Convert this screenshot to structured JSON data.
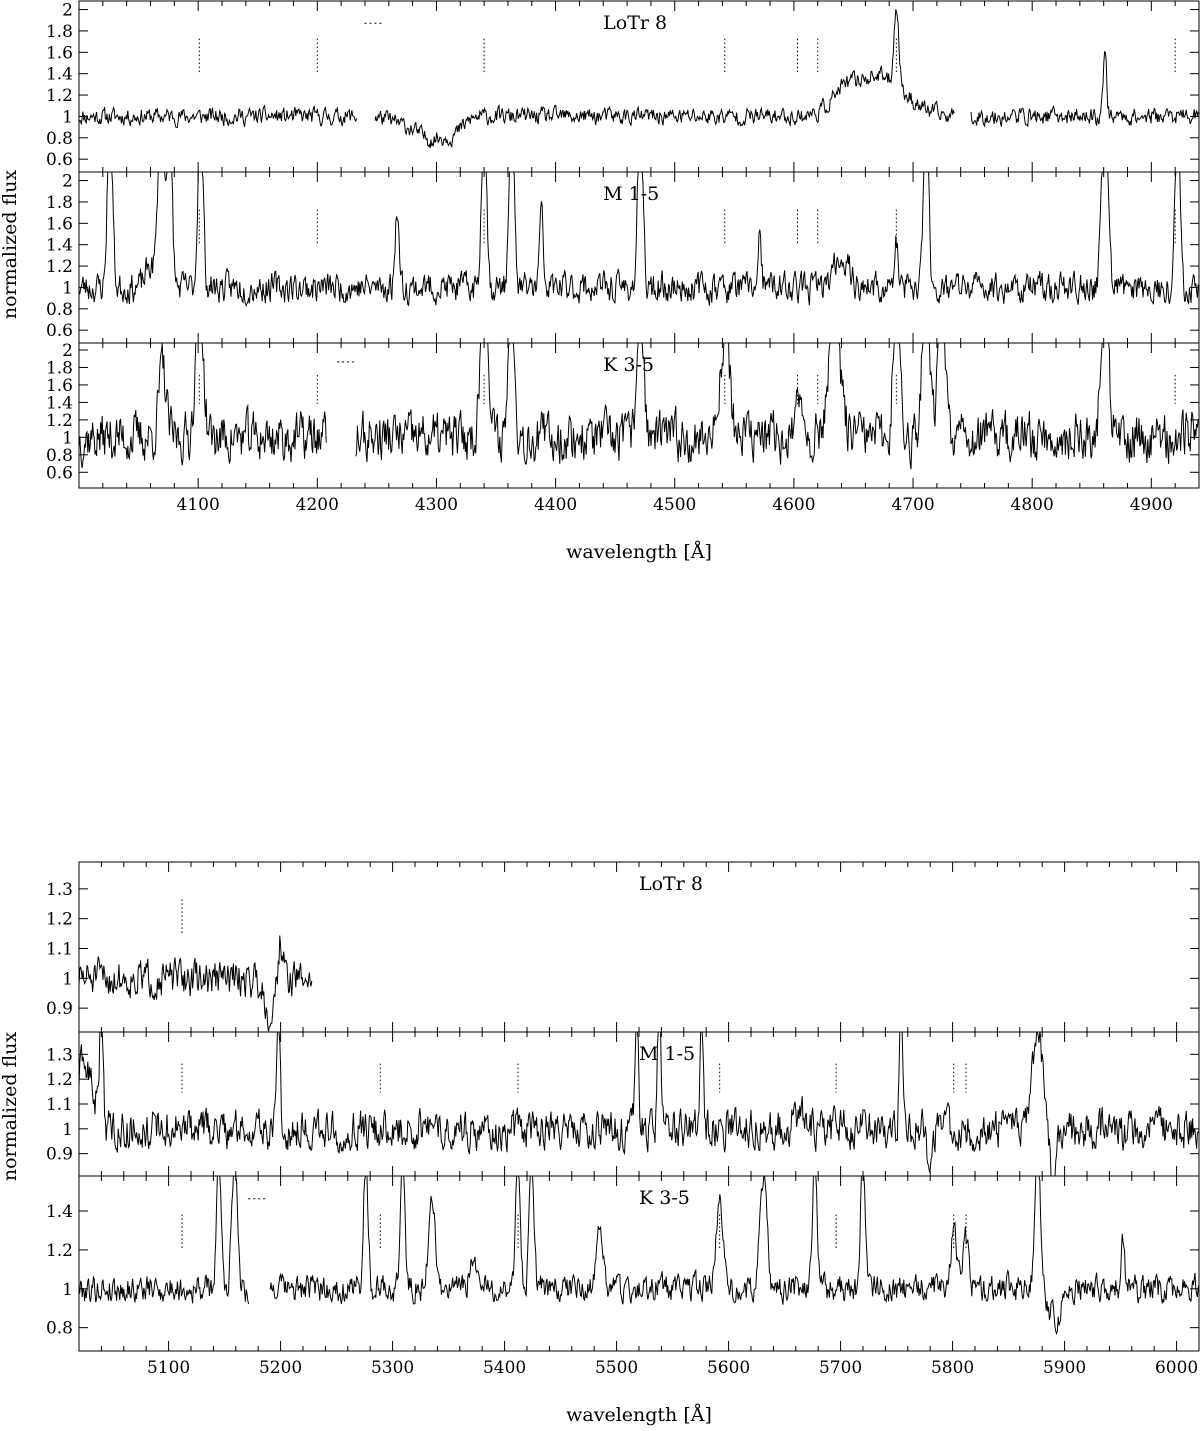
{
  "chart_data": [
    {
      "type": "line",
      "xlabel": "wavelength [Å]",
      "ylabel": "normalized flux",
      "xlim": [
        4000,
        4940
      ],
      "xticks": [
        4100,
        4200,
        4300,
        4400,
        4500,
        4600,
        4700,
        4800,
        4900
      ],
      "panels": [
        {
          "label": "LoTr 8",
          "ylim": [
            0.48,
            2.08
          ],
          "yticks": [
            0.6,
            0.8,
            1,
            1.2,
            1.4,
            1.6,
            1.8,
            2
          ],
          "line_marks": [
            4101,
            4200,
            4340,
            4542,
            4603,
            4620,
            4686,
            4920
          ],
          "short_marks": [
            4248
          ],
          "noise": 0.045,
          "seed": 11,
          "gaps": [
            [
              4233,
              4248
            ],
            [
              4735,
              4748
            ]
          ],
          "features": [
            {
              "center": 4270,
              "width": 10,
              "amp": -0.05
            },
            {
              "center": 4295,
              "width": 12,
              "amp": -0.2
            },
            {
              "center": 4315,
              "width": 8,
              "amp": -0.12
            },
            {
              "center": 4670,
              "width": 22,
              "amp": 0.38
            },
            {
              "center": 4686,
              "width": 2,
              "amp": 0.75
            },
            {
              "center": 4861,
              "width": 1.5,
              "amp": 0.6
            },
            {
              "center": 4641,
              "width": 10,
              "amp": 0.12
            }
          ]
        },
        {
          "label": "M 1-5",
          "ylim": [
            0.48,
            2.08
          ],
          "yticks": [
            0.6,
            0.8,
            1,
            1.2,
            1.4,
            1.6,
            1.8,
            2
          ],
          "line_marks": [
            4101,
            4200,
            4340,
            4542,
            4603,
            4620,
            4686,
            4920
          ],
          "short_marks": [],
          "noise": 0.08,
          "seed": 23,
          "gaps": [],
          "features": [
            {
              "center": 4026,
              "width": 2,
              "amp": 1.8
            },
            {
              "center": 4069,
              "width": 2.5,
              "amp": 1.8
            },
            {
              "center": 4076,
              "width": 2,
              "amp": 1.8
            },
            {
              "center": 4102,
              "width": 2,
              "amp": 1.8
            },
            {
              "center": 4267,
              "width": 1.5,
              "amp": 0.8
            },
            {
              "center": 4340,
              "width": 2,
              "amp": 1.8
            },
            {
              "center": 4363,
              "width": 2,
              "amp": 1.8
            },
            {
              "center": 4388,
              "width": 1.5,
              "amp": 0.7
            },
            {
              "center": 4471,
              "width": 2,
              "amp": 1.8
            },
            {
              "center": 4571,
              "width": 1.5,
              "amp": 0.45
            },
            {
              "center": 4640,
              "width": 6,
              "amp": 0.3
            },
            {
              "center": 4686,
              "width": 1.5,
              "amp": 0.4
            },
            {
              "center": 4711,
              "width": 2,
              "amp": 1.8
            },
            {
              "center": 4861,
              "width": 2.5,
              "amp": 1.8
            },
            {
              "center": 4922,
              "width": 2,
              "amp": 1.8
            },
            {
              "center": 4060,
              "width": 4,
              "amp": 0.2
            }
          ]
        },
        {
          "label": "K 3-5",
          "ylim": [
            0.42,
            2.08
          ],
          "yticks": [
            0.6,
            0.8,
            1,
            1.2,
            1.4,
            1.6,
            1.8,
            2
          ],
          "line_marks": [
            4101,
            4200,
            4340,
            4542,
            4603,
            4620,
            4686,
            4920
          ],
          "short_marks": [
            4225
          ],
          "noise": 0.16,
          "seed": 37,
          "gaps": [
            [
              4208,
              4232
            ]
          ],
          "features": [
            {
              "center": 4070,
              "width": 3,
              "amp": 0.8
            },
            {
              "center": 4101,
              "width": 3,
              "amp": 1.8
            },
            {
              "center": 4340,
              "width": 3,
              "amp": 1.8
            },
            {
              "center": 4363,
              "width": 2.5,
              "amp": 1.8
            },
            {
              "center": 4471,
              "width": 2.5,
              "amp": 1.8
            },
            {
              "center": 4542,
              "width": 4,
              "amp": 1.2
            },
            {
              "center": 4606,
              "width": 3,
              "amp": 0.45
            },
            {
              "center": 4634,
              "width": 5,
              "amp": 1.3
            },
            {
              "center": 4686,
              "width": 2.5,
              "amp": 1.8
            },
            {
              "center": 4711,
              "width": 3,
              "amp": 1.8
            },
            {
              "center": 4724,
              "width": 3,
              "amp": 1.8
            },
            {
              "center": 4740,
              "width": 3,
              "amp": 0.35
            },
            {
              "center": 4861,
              "width": 3,
              "amp": 1.8
            },
            {
              "center": 4938,
              "width": 2,
              "amp": 0.3
            }
          ]
        }
      ]
    },
    {
      "type": "line",
      "xlabel": "wavelength [Å]",
      "ylabel": "normalized flux",
      "xlim": [
        5020,
        6020
      ],
      "xticks": [
        5100,
        5200,
        5300,
        5400,
        5500,
        5600,
        5700,
        5800,
        5900,
        6000
      ],
      "panels": [
        {
          "label": "LoTr 8",
          "ylim": [
            0.82,
            1.39
          ],
          "yticks": [
            0.9,
            1,
            1.1,
            1.2,
            1.3
          ],
          "line_marks": [
            5112
          ],
          "short_marks": [],
          "noise": 0.035,
          "seed": 51,
          "data_range": [
            5020,
            5228
          ],
          "gaps": [],
          "features": [
            {
              "center": 5190,
              "width": 4,
              "amp": -0.12
            },
            {
              "center": 5200,
              "width": 2,
              "amp": 0.13
            }
          ]
        },
        {
          "label": "M 1-5",
          "ylim": [
            0.81,
            1.39
          ],
          "yticks": [
            0.9,
            1,
            1.1,
            1.2,
            1.3
          ],
          "line_marks": [
            5112,
            5289,
            5412,
            5592,
            5696,
            5801,
            5812
          ],
          "short_marks": [],
          "noise": 0.045,
          "seed": 63,
          "gaps": [],
          "features": [
            {
              "center": 5025,
              "width": 8,
              "amp": 0.25
            },
            {
              "center": 5040,
              "width": 1.5,
              "amp": 0.5
            },
            {
              "center": 5198,
              "width": 1.5,
              "amp": 0.45
            },
            {
              "center": 5518,
              "width": 1.5,
              "amp": 0.45
            },
            {
              "center": 5538,
              "width": 1.5,
              "amp": 0.5
            },
            {
              "center": 5576,
              "width": 1.2,
              "amp": 0.5
            },
            {
              "center": 5665,
              "width": 6,
              "amp": 0.08
            },
            {
              "center": 5754,
              "width": 1.5,
              "amp": 0.5
            },
            {
              "center": 5780,
              "width": 2,
              "amp": -0.22
            },
            {
              "center": 5876,
              "width": 4,
              "amp": 0.45
            },
            {
              "center": 5890,
              "width": 2,
              "amp": -0.35
            }
          ]
        },
        {
          "label": "K 3-5",
          "ylim": [
            0.68,
            1.58
          ],
          "yticks": [
            0.8,
            1,
            1.2,
            1.4
          ],
          "line_marks": [
            5112,
            5289,
            5412,
            5592,
            5696,
            5801,
            5812
          ],
          "short_marks": [
            5180
          ],
          "noise": 0.04,
          "seed": 79,
          "gaps": [
            [
              5172,
              5190
            ]
          ],
          "features": [
            {
              "center": 5145,
              "width": 2,
              "amp": 0.7
            },
            {
              "center": 5159,
              "width": 2.5,
              "amp": 0.7
            },
            {
              "center": 5276,
              "width": 2,
              "amp": 0.7
            },
            {
              "center": 5309,
              "width": 2,
              "amp": 0.7
            },
            {
              "center": 5335,
              "width": 3,
              "amp": 0.45
            },
            {
              "center": 5372,
              "width": 3,
              "amp": 0.15
            },
            {
              "center": 5412,
              "width": 2,
              "amp": 0.7
            },
            {
              "center": 5424,
              "width": 2,
              "amp": 0.7
            },
            {
              "center": 5485,
              "width": 3,
              "amp": 0.3
            },
            {
              "center": 5592,
              "width": 3,
              "amp": 0.5
            },
            {
              "center": 5631,
              "width": 3,
              "amp": 0.58
            },
            {
              "center": 5677,
              "width": 2,
              "amp": 0.7
            },
            {
              "center": 5720,
              "width": 2,
              "amp": 0.7
            },
            {
              "center": 5801,
              "width": 2.5,
              "amp": 0.35
            },
            {
              "center": 5812,
              "width": 2.5,
              "amp": 0.25
            },
            {
              "center": 5876,
              "width": 2.5,
              "amp": 0.7
            },
            {
              "center": 5892,
              "width": 6,
              "amp": -0.15
            },
            {
              "center": 5952,
              "width": 1.5,
              "amp": 0.25
            }
          ]
        }
      ]
    }
  ]
}
